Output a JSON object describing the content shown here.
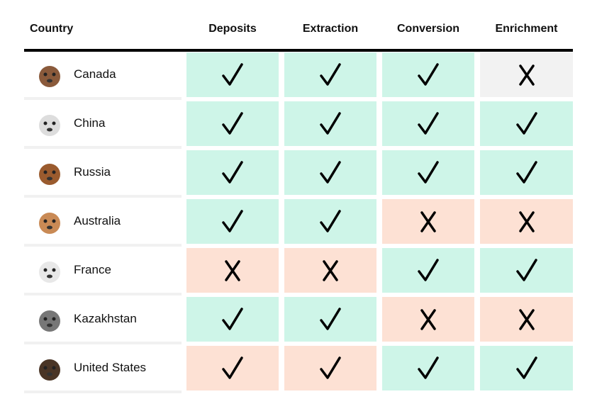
{
  "headers": [
    "Country",
    "Deposits",
    "Extraction",
    "Conversion",
    "Enrichment"
  ],
  "colors": {
    "green": "#cef5e8",
    "peach": "#fde1d4",
    "gray": "#f2f2f2"
  },
  "rows": [
    {
      "country": "Canada",
      "icon": "moose-icon",
      "iconColor": "#8a5a3b",
      "marks": [
        "check",
        "check",
        "check",
        "x"
      ],
      "bg": [
        "green",
        "green",
        "green",
        "gray"
      ]
    },
    {
      "country": "China",
      "icon": "panda-icon",
      "iconColor": "#dddddd",
      "marks": [
        "check",
        "check",
        "check",
        "check"
      ],
      "bg": [
        "green",
        "green",
        "green",
        "green"
      ]
    },
    {
      "country": "Russia",
      "icon": "bear-icon",
      "iconColor": "#9a5b2e",
      "marks": [
        "check",
        "check",
        "check",
        "check"
      ],
      "bg": [
        "green",
        "green",
        "green",
        "green"
      ]
    },
    {
      "country": "Australia",
      "icon": "kangaroo-icon",
      "iconColor": "#c98a55",
      "marks": [
        "check",
        "check",
        "x",
        "x"
      ],
      "bg": [
        "green",
        "green",
        "peach",
        "peach"
      ]
    },
    {
      "country": "France",
      "icon": "rooster-icon",
      "iconColor": "#e8e8e8",
      "marks": [
        "x",
        "x",
        "check",
        "check"
      ],
      "bg": [
        "peach",
        "peach",
        "green",
        "green"
      ]
    },
    {
      "country": "Kazakhstan",
      "icon": "wolf-icon",
      "iconColor": "#777777",
      "marks": [
        "check",
        "check",
        "x",
        "x"
      ],
      "bg": [
        "green",
        "green",
        "peach",
        "peach"
      ]
    },
    {
      "country": "United States",
      "icon": "eagle-icon",
      "iconColor": "#4a3526",
      "marks": [
        "check",
        "check",
        "check",
        "check"
      ],
      "bg": [
        "peach",
        "peach",
        "green",
        "green"
      ]
    }
  ]
}
